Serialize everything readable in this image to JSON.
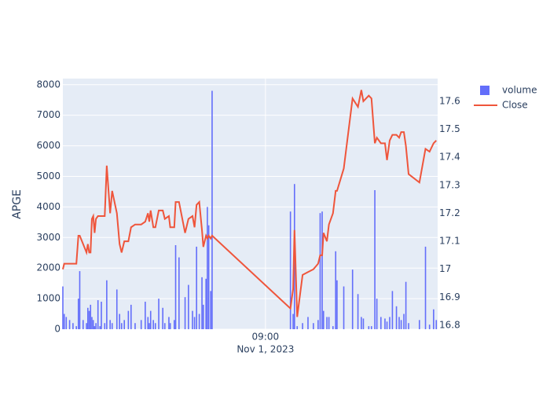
{
  "chart_data": {
    "type": "bar-line",
    "y_label": "APGE",
    "x": [
      "2023-11-01 04:00",
      "2023-11-01 04:02",
      "2023-11-01 04:05",
      "2023-11-01 04:10",
      "2023-11-01 04:15",
      "2023-11-01 04:20",
      "2023-11-01 04:23",
      "2023-11-01 04:25",
      "2023-11-01 04:30",
      "2023-11-01 04:35",
      "2023-11-01 04:37",
      "2023-11-01 04:39",
      "2023-11-01 04:41",
      "2023-11-01 04:43",
      "2023-11-01 04:45",
      "2023-11-01 04:47",
      "2023-11-01 04:49",
      "2023-11-01 04:52",
      "2023-11-01 04:55",
      "2023-11-01 04:57",
      "2023-11-01 05:02",
      "2023-11-01 05:05",
      "2023-11-01 05:10",
      "2023-11-01 05:13",
      "2023-11-01 05:20",
      "2023-11-01 05:24",
      "2023-11-01 05:27",
      "2023-11-01 05:31",
      "2023-11-01 05:37",
      "2023-11-01 05:41",
      "2023-11-01 05:47",
      "2023-11-01 05:56",
      "2023-11-01 06:02",
      "2023-11-01 06:06",
      "2023-11-01 06:08",
      "2023-11-01 06:10",
      "2023-11-01 06:14",
      "2023-11-01 06:17",
      "2023-11-01 06:22",
      "2023-11-01 06:28",
      "2023-11-01 06:31",
      "2023-11-01 06:37",
      "2023-11-01 06:39",
      "2023-11-01 06:45",
      "2023-11-01 06:47",
      "2023-11-01 06:52",
      "2023-11-01 07:01",
      "2023-11-01 07:06",
      "2023-11-01 07:12",
      "2023-11-01 07:15",
      "2023-11-01 07:18",
      "2023-11-01 07:22",
      "2023-11-01 07:26",
      "2023-11-01 07:28",
      "2023-11-01 07:32",
      "2023-11-01 07:34",
      "2023-11-01 07:36",
      "2023-11-01 07:39",
      "2023-11-01 07:41",
      "2023-11-01 09:37",
      "2023-11-01 09:41",
      "2023-11-01 09:43",
      "2023-11-01 09:47",
      "2023-11-01 09:55",
      "2023-11-01 10:03",
      "2023-11-01 10:11",
      "2023-11-01 10:18",
      "2023-11-01 10:21",
      "2023-11-01 10:24",
      "2023-11-01 10:26",
      "2023-11-01 10:31",
      "2023-11-01 10:34",
      "2023-11-01 10:40",
      "2023-11-01 10:44",
      "2023-11-01 10:46",
      "2023-11-01 10:56",
      "2023-11-01 11:09",
      "2023-11-01 11:17",
      "2023-11-01 11:22",
      "2023-11-01 11:25",
      "2023-11-01 11:33",
      "2023-11-01 11:37",
      "2023-11-01 11:42",
      "2023-11-01 11:45",
      "2023-11-01 11:51",
      "2023-11-01 11:57",
      "2023-11-01 12:00",
      "2023-11-01 12:04",
      "2023-11-01 12:08",
      "2023-11-01 12:14",
      "2023-11-01 12:18",
      "2023-11-01 12:21",
      "2023-11-01 12:25",
      "2023-11-01 12:28",
      "2023-11-01 12:32",
      "2023-11-01 12:48",
      "2023-11-01 12:57",
      "2023-11-01 13:03",
      "2023-11-01 13:09",
      "2023-11-01 13:13"
    ],
    "series": [
      {
        "name": "volume",
        "color": "#636efa",
        "kind": "bar",
        "values": [
          1400,
          500,
          400,
          300,
          200,
          100,
          1000,
          1900,
          300,
          200,
          700,
          600,
          800,
          400,
          300,
          100,
          200,
          950,
          100,
          900,
          200,
          1600,
          300,
          200,
          1300,
          500,
          200,
          300,
          600,
          800,
          200,
          300,
          900,
          400,
          200,
          600,
          300,
          200,
          1000,
          700,
          200,
          400,
          200,
          300,
          2750,
          2350,
          1050,
          1450,
          600,
          400,
          2700,
          500,
          1700,
          800,
          1650,
          4000,
          3400,
          1250,
          7800,
          3850,
          500,
          4750,
          100,
          200,
          400,
          200,
          300,
          3800,
          3850,
          600,
          400,
          400,
          100,
          2550,
          1600,
          1400,
          1950,
          1150,
          400,
          350,
          100,
          100,
          4550,
          1000,
          400,
          350,
          250,
          400,
          1250,
          750,
          400,
          300,
          500,
          1550,
          200,
          300,
          2700,
          150,
          650,
          300
        ]
      },
      {
        "name": "Close",
        "color": "#ef553b",
        "kind": "line",
        "axis": "y2",
        "values": [
          17.0,
          17.02,
          17.02,
          17.02,
          17.02,
          17.02,
          17.12,
          17.12,
          17.09,
          17.06,
          17.09,
          17.06,
          17.06,
          17.18,
          17.19,
          17.13,
          17.18,
          17.19,
          17.19,
          17.19,
          17.19,
          17.37,
          17.2,
          17.28,
          17.2,
          17.09,
          17.06,
          17.1,
          17.1,
          17.15,
          17.16,
          17.16,
          17.17,
          17.2,
          17.17,
          17.21,
          17.15,
          17.15,
          17.21,
          17.21,
          17.18,
          17.19,
          17.15,
          17.15,
          17.24,
          17.24,
          17.13,
          17.18,
          17.19,
          17.15,
          17.23,
          17.24,
          17.14,
          17.08,
          17.12,
          17.11,
          17.12,
          17.11,
          17.12,
          16.86,
          16.93,
          17.14,
          16.83,
          16.98,
          16.99,
          17.0,
          17.02,
          17.05,
          17.05,
          17.13,
          17.1,
          17.16,
          17.2,
          17.28,
          17.28,
          17.36,
          17.61,
          17.58,
          17.64,
          17.6,
          17.62,
          17.61,
          17.45,
          17.47,
          17.45,
          17.45,
          17.39,
          17.46,
          17.48,
          17.48,
          17.47,
          17.49,
          17.49,
          17.44,
          17.34,
          17.31,
          17.43,
          17.42,
          17.45,
          17.46
        ]
      }
    ],
    "xlim": [
      "2023-11-01 04:00",
      "2023-11-01 13:15"
    ],
    "xticks": [
      {
        "value": "2023-11-01 09:00",
        "label": "09:00"
      }
    ],
    "x_date_label": "Nov 1, 2023",
    "ylim": [
      0,
      8200
    ],
    "yticks": [
      0,
      1000,
      2000,
      3000,
      4000,
      5000,
      6000,
      7000,
      8000
    ],
    "y2lim": [
      16.786,
      17.681
    ],
    "y2ticks": [
      16.8,
      16.9,
      17,
      17.1,
      17.2,
      17.3,
      17.4,
      17.5,
      17.6
    ],
    "grid": true
  }
}
